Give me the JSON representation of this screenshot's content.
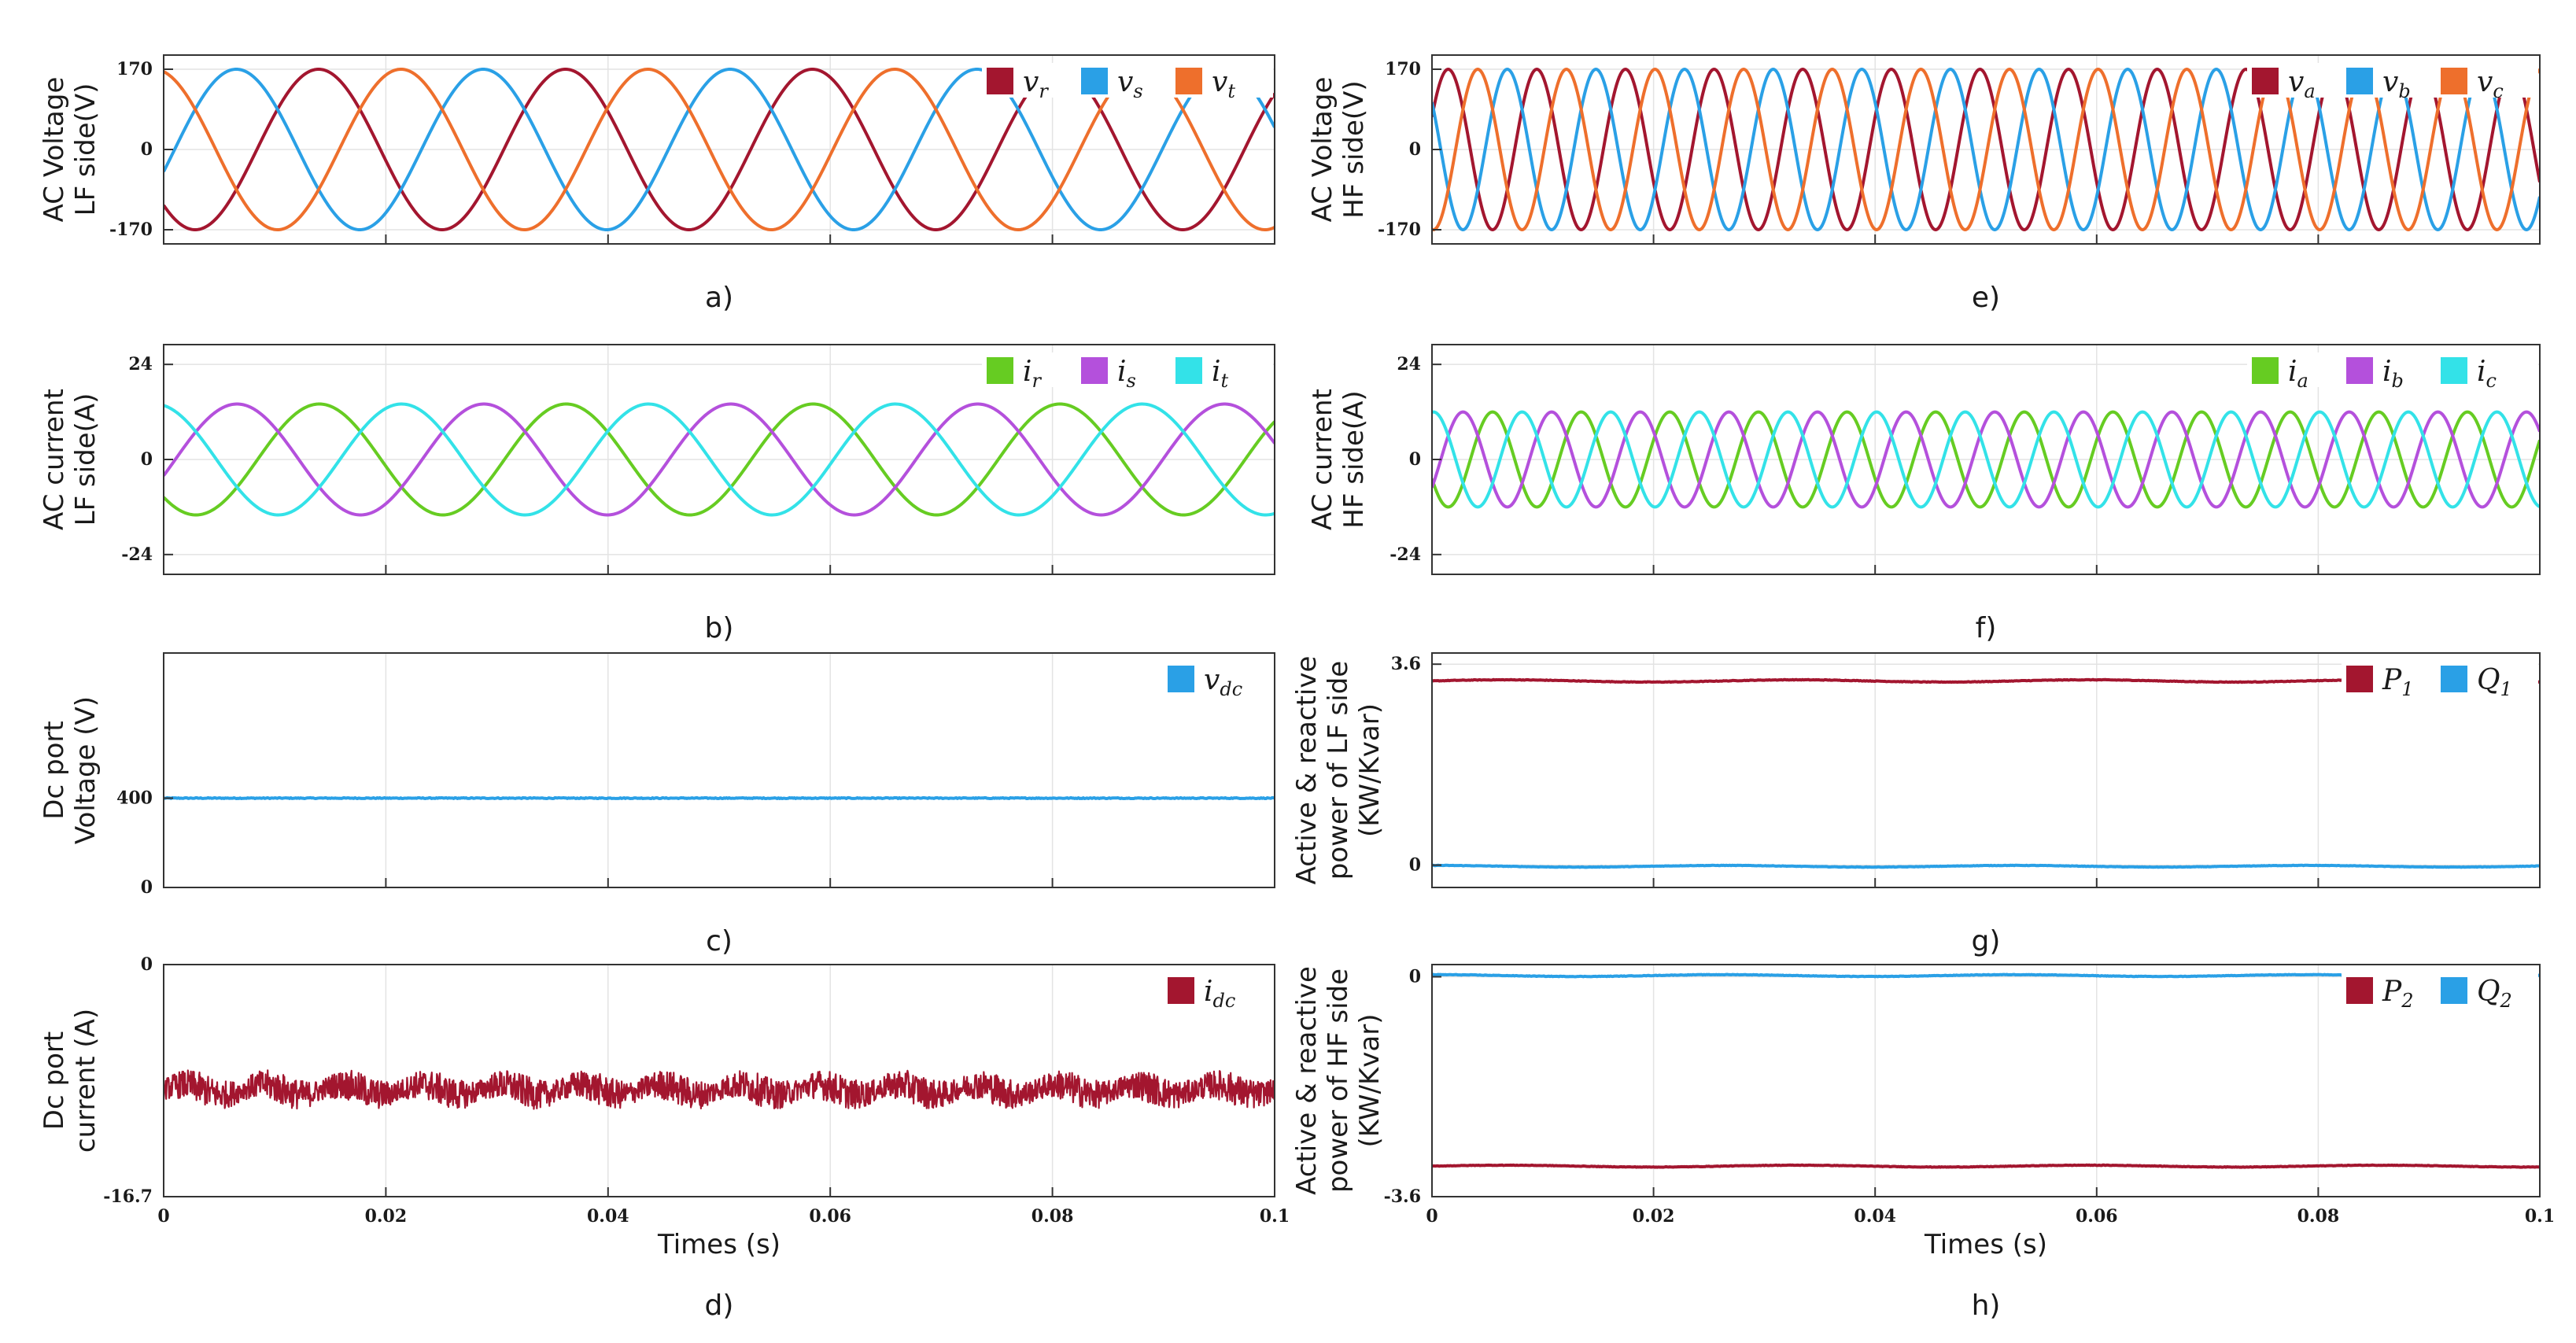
{
  "chart_data": [
    {
      "id": "a",
      "type": "line",
      "caption": "a)",
      "ylabel": [
        "AC Voltage",
        "LF side(V)"
      ],
      "xlabel": "",
      "xlim": [
        0,
        0.1
      ],
      "ylim": [
        -200,
        200
      ],
      "yticks": [
        -170,
        0,
        170
      ],
      "yticklabels": [
        "-170",
        "0",
        "170"
      ],
      "xticks": [
        0,
        0.02,
        0.04,
        0.06,
        0.08,
        0.1
      ],
      "xticklabels": [],
      "grid": true,
      "legend_position": "top-right",
      "series": [
        {
          "name": "v_r",
          "label": "v",
          "sub": "r",
          "color": "#a3162f",
          "kind": "sine",
          "amplitude": 170,
          "frequency": 45,
          "phase_deg": 224,
          "offset": 0,
          "noise": 0
        },
        {
          "name": "v_s",
          "label": "v",
          "sub": "s",
          "color": "#2aa0e6",
          "kind": "sine",
          "amplitude": 170,
          "frequency": 45,
          "phase_deg": 344,
          "offset": 0,
          "noise": 0
        },
        {
          "name": "v_t",
          "label": "v",
          "sub": "t",
          "color": "#ee6f2c",
          "kind": "sine",
          "amplitude": 170,
          "frequency": 45,
          "phase_deg": 104,
          "offset": 0,
          "noise": 0
        }
      ]
    },
    {
      "id": "e",
      "type": "line",
      "caption": "e)",
      "ylabel": [
        "AC Voltage",
        "HF side(V)"
      ],
      "xlabel": "",
      "xlim": [
        0,
        0.1
      ],
      "ylim": [
        -200,
        200
      ],
      "yticks": [
        -170,
        0,
        170
      ],
      "yticklabels": [
        "-170",
        "0",
        "170"
      ],
      "xticks": [
        0,
        0.02,
        0.04,
        0.06,
        0.08,
        0.1
      ],
      "xticklabels": [],
      "grid": true,
      "legend_position": "top-right",
      "series": [
        {
          "name": "v_a",
          "label": "v",
          "sub": "a",
          "color": "#a3162f",
          "kind": "sine",
          "amplitude": 170,
          "frequency": 125,
          "phase_deg": 24,
          "offset": 0,
          "noise": 0
        },
        {
          "name": "v_b",
          "label": "v",
          "sub": "b",
          "color": "#2aa0e6",
          "kind": "sine",
          "amplitude": 170,
          "frequency": 125,
          "phase_deg": 144,
          "offset": 0,
          "noise": 0
        },
        {
          "name": "v_c",
          "label": "v",
          "sub": "c",
          "color": "#ee6f2c",
          "kind": "sine",
          "amplitude": 170,
          "frequency": 125,
          "phase_deg": 264,
          "offset": 0,
          "noise": 0
        }
      ]
    },
    {
      "id": "b",
      "type": "line",
      "caption": "b)",
      "ylabel": [
        "AC current",
        "LF side(A)"
      ],
      "xlabel": "",
      "xlim": [
        0,
        0.1
      ],
      "ylim": [
        -29,
        29
      ],
      "yticks": [
        -24,
        0,
        24
      ],
      "yticklabels": [
        "-24",
        "0",
        "24"
      ],
      "xticks": [
        0,
        0.02,
        0.04,
        0.06,
        0.08,
        0.1
      ],
      "xticklabels": [],
      "grid": true,
      "legend_position": "top-right",
      "series": [
        {
          "name": "i_r",
          "label": "i",
          "sub": "r",
          "color": "#66cc22",
          "kind": "sine",
          "amplitude": 14,
          "frequency": 45,
          "phase_deg": 223,
          "offset": 0,
          "noise": 0
        },
        {
          "name": "i_s",
          "label": "i",
          "sub": "s",
          "color": "#b450dc",
          "kind": "sine",
          "amplitude": 14,
          "frequency": 45,
          "phase_deg": 343,
          "offset": 0,
          "noise": 0
        },
        {
          "name": "i_t",
          "label": "i",
          "sub": "t",
          "color": "#33e2e8",
          "kind": "sine",
          "amplitude": 14,
          "frequency": 45,
          "phase_deg": 103,
          "offset": 0,
          "noise": 0
        }
      ]
    },
    {
      "id": "f",
      "type": "line",
      "caption": "f)",
      "ylabel": [
        "AC current",
        "HF side(A)"
      ],
      "xlabel": "",
      "xlim": [
        0,
        0.1
      ],
      "ylim": [
        -29,
        29
      ],
      "yticks": [
        -24,
        0,
        24
      ],
      "yticklabels": [
        "-24",
        "0",
        "24"
      ],
      "xticks": [
        0,
        0.02,
        0.04,
        0.06,
        0.08,
        0.1
      ],
      "xticklabels": [],
      "grid": true,
      "legend_position": "top-right",
      "series": [
        {
          "name": "i_a",
          "label": "i",
          "sub": "a",
          "color": "#66cc22",
          "kind": "sine",
          "amplitude": 12,
          "frequency": 125,
          "phase_deg": 204,
          "offset": 0,
          "noise": 0
        },
        {
          "name": "i_b",
          "label": "i",
          "sub": "b",
          "color": "#b450dc",
          "kind": "sine",
          "amplitude": 12,
          "frequency": 125,
          "phase_deg": 324,
          "offset": 0,
          "noise": 0
        },
        {
          "name": "i_c",
          "label": "i",
          "sub": "c",
          "color": "#33e2e8",
          "kind": "sine",
          "amplitude": 12,
          "frequency": 125,
          "phase_deg": 84,
          "offset": 0,
          "noise": 0
        }
      ]
    },
    {
      "id": "c",
      "type": "line",
      "caption": "c)",
      "ylabel": [
        "Dc port",
        "Voltage (V)"
      ],
      "xlabel": "",
      "xlim": [
        0,
        0.1
      ],
      "ylim": [
        0,
        1050
      ],
      "yticks": [
        0,
        400
      ],
      "yticklabels": [
        "0",
        "400"
      ],
      "xticks": [
        0,
        0.02,
        0.04,
        0.06,
        0.08,
        0.1
      ],
      "xticklabels": [],
      "grid": true,
      "legend_position": "top-right",
      "series": [
        {
          "name": "v_dc",
          "label": "v",
          "sub": "dc",
          "color": "#2aa0e6",
          "kind": "const",
          "amplitude": 0,
          "frequency": 0,
          "phase_deg": 0,
          "offset": 400,
          "noise": 2
        }
      ]
    },
    {
      "id": "g",
      "type": "line",
      "caption": "g)",
      "ylabel": [
        "Active & reactive",
        "power of LF side",
        "(KW/Kvar)"
      ],
      "xlabel": "",
      "xlim": [
        0,
        0.1
      ],
      "ylim": [
        -0.4,
        3.8
      ],
      "yticks": [
        0,
        3.6
      ],
      "yticklabels": [
        "0",
        "3.6"
      ],
      "xticks": [
        0,
        0.02,
        0.04,
        0.06,
        0.08,
        0.1
      ],
      "xticklabels": [],
      "grid": true,
      "legend_position": "top-right",
      "series": [
        {
          "name": "P_1",
          "label": "P",
          "sub": "1",
          "color": "#a3162f",
          "kind": "const",
          "amplitude": 0.02,
          "frequency": 38,
          "phase_deg": 0,
          "offset": 3.3,
          "noise": 0.005
        },
        {
          "name": "Q_1",
          "label": "Q",
          "sub": "1",
          "color": "#2aa0e6",
          "kind": "const",
          "amplitude": 0.015,
          "frequency": 38,
          "phase_deg": 90,
          "offset": -0.02,
          "noise": 0.004
        }
      ]
    },
    {
      "id": "d",
      "type": "line",
      "caption": "d)",
      "ylabel": [
        "Dc port",
        "current (A)"
      ],
      "xlabel": "Times (s)",
      "xlim": [
        0,
        0.1
      ],
      "ylim": [
        -16.7,
        0
      ],
      "yticks": [
        -16.7,
        0
      ],
      "yticklabels": [
        "-16.7",
        "0"
      ],
      "xticks": [
        0,
        0.02,
        0.04,
        0.06,
        0.08,
        0.1
      ],
      "xticklabels": [
        "0",
        "0.02",
        "0.04",
        "0.06",
        "0.08",
        "0.1"
      ],
      "grid": true,
      "legend_position": "top-right",
      "series": [
        {
          "name": "i_dc",
          "label": "i",
          "sub": "dc",
          "color": "#a3162f",
          "kind": "noisy",
          "amplitude": 0.6,
          "frequency": 140,
          "phase_deg": 0,
          "offset": -9.0,
          "noise": 0.9
        }
      ]
    },
    {
      "id": "h",
      "type": "line",
      "caption": "h)",
      "ylabel": [
        "Active & reactive",
        "power of HF side",
        "(KW/Kvar)"
      ],
      "xlabel": "Times (s)",
      "xlim": [
        0,
        0.1
      ],
      "ylim": [
        -3.6,
        0.2
      ],
      "yticks": [
        -3.6,
        0
      ],
      "yticklabels": [
        "-3.6",
        "0"
      ],
      "xticks": [
        0,
        0.02,
        0.04,
        0.06,
        0.08,
        0.1
      ],
      "xticklabels": [
        "0",
        "0.02",
        "0.04",
        "0.06",
        "0.08",
        "0.1"
      ],
      "grid": true,
      "legend_position": "top-right",
      "series": [
        {
          "name": "P_2",
          "label": "P",
          "sub": "2",
          "color": "#a3162f",
          "kind": "const",
          "amplitude": 0.015,
          "frequency": 38,
          "phase_deg": 0,
          "offset": -3.1,
          "noise": 0.004
        },
        {
          "name": "Q_2",
          "label": "Q",
          "sub": "2",
          "color": "#2aa0e6",
          "kind": "const",
          "amplitude": 0.015,
          "frequency": 38,
          "phase_deg": 90,
          "offset": 0.02,
          "noise": 0.004
        }
      ]
    }
  ],
  "colors": {
    "red": "#a3162f",
    "blue": "#2aa0e6",
    "orange": "#ee6f2c",
    "green": "#66cc22",
    "purple": "#b450dc",
    "cyan": "#33e2e8",
    "axis": "#333333",
    "grid": "#e3e3e3"
  }
}
